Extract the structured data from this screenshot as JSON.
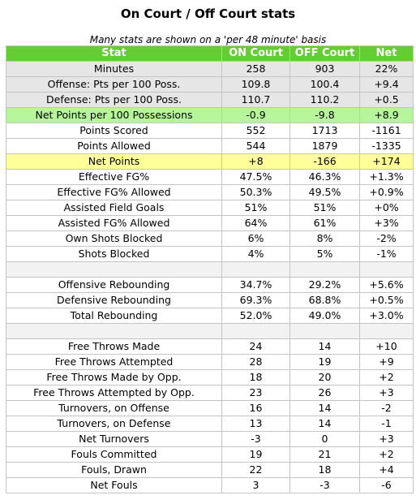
{
  "title": "On Court / Off Court stats",
  "subtitle": "Many stats are shown on a 'per 48 minute' basis",
  "headers": [
    "Stat",
    "ON Court",
    "OFF Court",
    "Net"
  ],
  "rows": [
    {
      "type": "grey",
      "cells": [
        "Minutes",
        "258",
        "903",
        "22%"
      ]
    },
    {
      "type": "grey",
      "cells": [
        "Offense: Pts per 100 Poss.",
        "109.8",
        "100.4",
        "+9.4"
      ]
    },
    {
      "type": "grey",
      "cells": [
        "Defense: Pts per 100 Poss.",
        "110.7",
        "110.2",
        "+0.5"
      ]
    },
    {
      "type": "green",
      "cells": [
        "Net Points per 100 Possessions",
        "-0.9",
        "-9.8",
        "+8.9"
      ]
    },
    {
      "type": "plain",
      "cells": [
        "Points Scored",
        "552",
        "1713",
        "-1161"
      ]
    },
    {
      "type": "plain",
      "cells": [
        "Points Allowed",
        "544",
        "1879",
        "-1335"
      ]
    },
    {
      "type": "yellow",
      "cells": [
        "Net Points",
        "+8",
        "-166",
        "+174"
      ]
    },
    {
      "type": "plain",
      "cells": [
        "Effective FG%",
        "47.5%",
        "46.3%",
        "+1.3%"
      ]
    },
    {
      "type": "plain",
      "cells": [
        "Effective FG% Allowed",
        "50.3%",
        "49.5%",
        "+0.9%"
      ]
    },
    {
      "type": "plain",
      "cells": [
        "Assisted Field Goals",
        "51%",
        "51%",
        "+0%"
      ]
    },
    {
      "type": "plain",
      "cells": [
        "Assisted FG% Allowed",
        "64%",
        "61%",
        "+3%"
      ]
    },
    {
      "type": "plain",
      "cells": [
        "Own Shots Blocked",
        "6%",
        "8%",
        "-2%"
      ]
    },
    {
      "type": "plain",
      "cells": [
        "Shots Blocked",
        "4%",
        "5%",
        "-1%"
      ]
    },
    {
      "type": "spacer",
      "cells": [
        "",
        "",
        "",
        ""
      ]
    },
    {
      "type": "plain",
      "cells": [
        "Offensive Rebounding",
        "34.7%",
        "29.2%",
        "+5.6%"
      ]
    },
    {
      "type": "plain",
      "cells": [
        "Defensive Rebounding",
        "69.3%",
        "68.8%",
        "+0.5%"
      ]
    },
    {
      "type": "plain",
      "cells": [
        "Total Rebounding",
        "52.0%",
        "49.0%",
        "+3.0%"
      ]
    },
    {
      "type": "spacer",
      "cells": [
        "",
        "",
        "",
        ""
      ]
    },
    {
      "type": "plain",
      "cells": [
        "Free Throws Made",
        "24",
        "14",
        "+10"
      ]
    },
    {
      "type": "plain",
      "cells": [
        "Free Throws Attempted",
        "28",
        "19",
        "+9"
      ]
    },
    {
      "type": "plain",
      "cells": [
        "Free Throws Made by Opp.",
        "18",
        "20",
        "+2"
      ]
    },
    {
      "type": "plain",
      "cells": [
        "Free Throws Attempted by Opp.",
        "23",
        "26",
        "+3"
      ]
    },
    {
      "type": "plain",
      "cells": [
        "Turnovers, on Offense",
        "16",
        "14",
        "-2"
      ]
    },
    {
      "type": "plain",
      "cells": [
        "Turnovers, on Defense",
        "13",
        "14",
        "-1"
      ]
    },
    {
      "type": "plain",
      "cells": [
        "Net Turnovers",
        "-3",
        "0",
        "+3"
      ]
    },
    {
      "type": "plain",
      "cells": [
        "Fouls Committed",
        "19",
        "21",
        "+2"
      ]
    },
    {
      "type": "plain",
      "cells": [
        "Fouls, Drawn",
        "22",
        "18",
        "+4"
      ]
    },
    {
      "type": "plain",
      "cells": [
        "Net Fouls",
        "3",
        "-3",
        "-6"
      ]
    }
  ]
}
